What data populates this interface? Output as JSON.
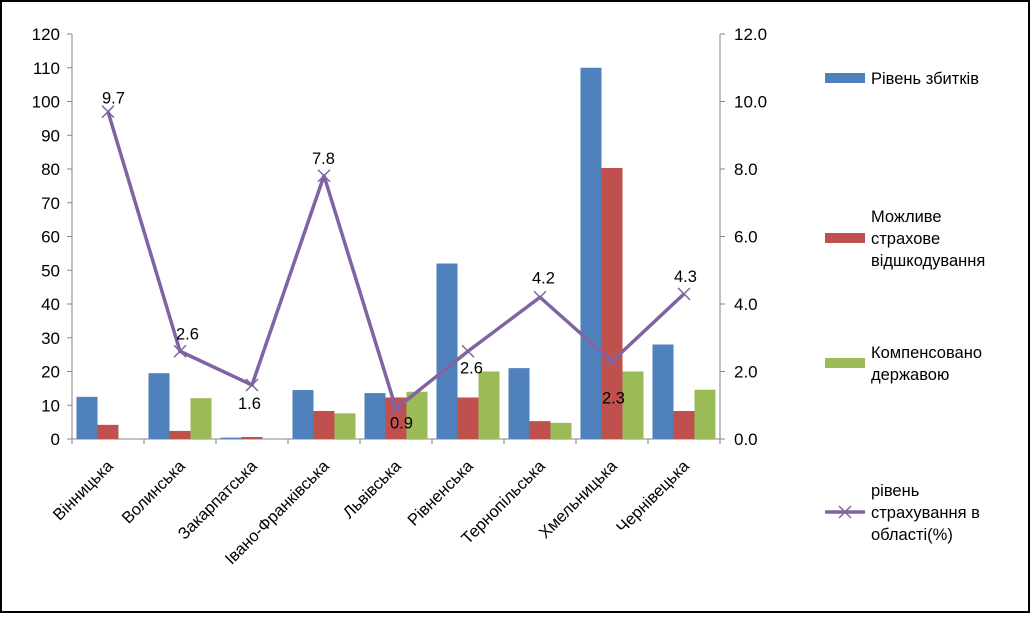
{
  "chart_data": {
    "type": "bar",
    "categories": [
      "Вінницька",
      "Волинська",
      "Закарпатська",
      "Івано-Франківська",
      "Львівська",
      "Рівненська",
      "Тернопільська",
      "Хмельницька",
      "Чернівецька"
    ],
    "series": [
      {
        "name": "Рівень збитків",
        "type": "bar",
        "axis": "left",
        "color": "#4F81BD",
        "values": [
          12.5,
          19.5,
          0.4,
          14.5,
          13.6,
          52,
          21,
          110,
          28
        ]
      },
      {
        "name": "Можливе страхове відшкодування",
        "type": "bar",
        "axis": "left",
        "color": "#C0504D",
        "values": [
          4.2,
          2.4,
          0.6,
          8.3,
          12.3,
          12.3,
          5.3,
          80.3,
          8.3
        ]
      },
      {
        "name": "Компенсовано державою",
        "type": "bar",
        "axis": "left",
        "color": "#9BBB59",
        "values": [
          0,
          12.1,
          0,
          7.6,
          14,
          20,
          4.8,
          20,
          14.6
        ]
      },
      {
        "name": "рівень страхування в області(%)",
        "type": "line",
        "axis": "right",
        "color": "#8064A2",
        "values": [
          9.7,
          2.6,
          1.6,
          7.8,
          0.9,
          2.6,
          4.2,
          2.3,
          4.3
        ],
        "labels": [
          "9.7",
          "2.6",
          "1.6",
          "7.8",
          "0.9",
          "2.6",
          "4.2",
          "2.3",
          "4.3"
        ]
      }
    ],
    "y_left": {
      "min": 0,
      "max": 120,
      "step": 10,
      "ticks": [
        "0",
        "10",
        "20",
        "30",
        "40",
        "50",
        "60",
        "70",
        "80",
        "90",
        "100",
        "110",
        "120"
      ]
    },
    "y_right": {
      "min": 0,
      "max": 12,
      "step": 2,
      "ticks": [
        "0.0",
        "2.0",
        "4.0",
        "6.0",
        "8.0",
        "10.0",
        "12.0"
      ]
    },
    "grid": false,
    "legend_position": "right",
    "legend": [
      {
        "lines": [
          "Рівень збитків"
        ],
        "color": "#4F81BD",
        "kind": "bar"
      },
      {
        "lines": [
          "Можливе",
          "страхове",
          "відшкодування"
        ],
        "color": "#C0504D",
        "kind": "bar"
      },
      {
        "lines": [
          "Компенсовано",
          "державою"
        ],
        "color": "#9BBB59",
        "kind": "bar"
      },
      {
        "lines": [
          "рівень",
          "страхування в",
          "області(%)"
        ],
        "color": "#8064A2",
        "kind": "line"
      }
    ]
  }
}
